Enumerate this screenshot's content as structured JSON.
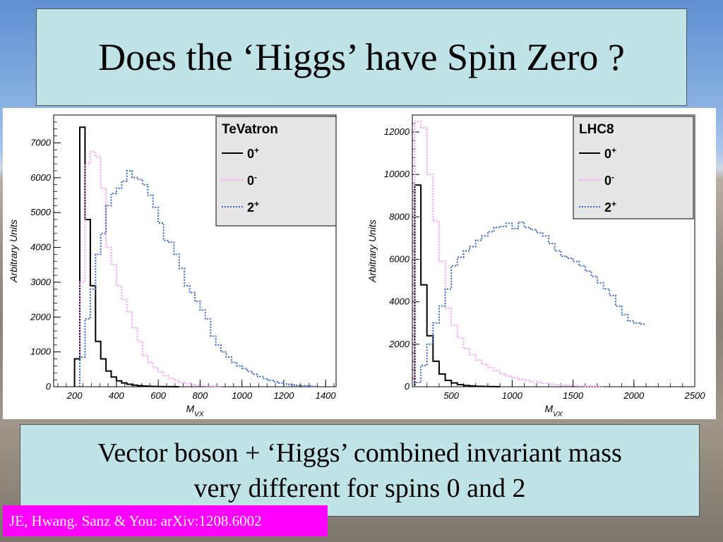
{
  "slide": {
    "title": "Does the ‘Higgs’ have Spin Zero ?",
    "caption_line1": "Vector boson + ‘Higgs’ combined invariant mass",
    "caption_line2": "very different for spins 0 and 2",
    "reference": "JE, Hwang. Sanz & You: arXiv:1208.6002"
  },
  "colors": {
    "series_0plus": "#000000",
    "series_0minus": "#ff99ff",
    "series_2plus": "#3366cc",
    "legend_bg": "#e6e6e6"
  },
  "chart_data": [
    {
      "type": "line",
      "legend_title": "TeVatron",
      "xlabel": "M_VX",
      "ylabel": "Arbitrary Units",
      "xlim": [
        100,
        1450
      ],
      "ylim": [
        0,
        7800
      ],
      "xticks": [
        200,
        400,
        600,
        800,
        1000,
        1200,
        1400
      ],
      "yticks": [
        0,
        1000,
        2000,
        3000,
        4000,
        5000,
        6000,
        7000
      ],
      "bin_width": 25,
      "series": [
        {
          "name": "0+",
          "sup": "+",
          "base": "0",
          "style": "solid",
          "bin_start": 200,
          "values": [
            800,
            7450,
            4800,
            2900,
            1300,
            800,
            450,
            280,
            170,
            110,
            70,
            45,
            30,
            20,
            12,
            8,
            5,
            3,
            2,
            1
          ]
        },
        {
          "name": "0-",
          "sup": "-",
          "base": "0",
          "style": "dotted",
          "bin_start": 225,
          "values": [
            3000,
            6400,
            6750,
            6600,
            5700,
            4000,
            3500,
            2900,
            2500,
            2150,
            1700,
            1300,
            900,
            700,
            550,
            420,
            320,
            240,
            180,
            130,
            90,
            60,
            40,
            25,
            15,
            10,
            5
          ]
        },
        {
          "name": "2+",
          "sup": "+",
          "base": "2",
          "style": "dotted",
          "bin_start": 225,
          "values": [
            850,
            1950,
            2800,
            3800,
            4400,
            5200,
            5550,
            5700,
            5900,
            6200,
            6000,
            5950,
            5800,
            5500,
            5150,
            4700,
            4200,
            4150,
            3800,
            3400,
            2900,
            2700,
            2450,
            2200,
            1950,
            1450,
            1200,
            1000,
            850,
            700,
            600,
            520,
            440,
            360,
            290,
            230,
            180,
            140,
            110,
            80,
            55,
            40,
            30,
            20,
            10
          ]
        }
      ]
    },
    {
      "type": "line",
      "legend_title": "LHC8",
      "xlabel": "M_VX",
      "ylabel": "Arbitrary Units",
      "xlim": [
        180,
        2500
      ],
      "ylim": [
        0,
        12800
      ],
      "xticks": [
        500,
        1000,
        1500,
        2000,
        2500
      ],
      "yticks": [
        0,
        2000,
        4000,
        6000,
        8000,
        10000,
        12000
      ],
      "bin_width": 50,
      "series": [
        {
          "name": "0+",
          "sup": "+",
          "base": "0",
          "style": "solid",
          "bin_start": 200,
          "values": [
            9500,
            4800,
            2400,
            1200,
            600,
            300,
            180,
            100,
            60,
            35,
            20,
            12,
            6,
            3
          ]
        },
        {
          "name": "0-",
          "sup": "-",
          "base": "0",
          "style": "dotted",
          "bin_start": 200,
          "values": [
            12500,
            12200,
            10000,
            7800,
            5900,
            3700,
            2900,
            2300,
            1800,
            1500,
            1250,
            1050,
            900,
            750,
            600,
            500,
            420,
            350,
            300,
            250,
            200,
            160,
            120,
            90,
            70,
            55,
            40,
            30,
            20,
            15,
            10
          ]
        },
        {
          "name": "2+",
          "sup": "+",
          "base": "2",
          "style": "dotted",
          "bin_start": 200,
          "values": [
            200,
            1000,
            2000,
            3000,
            3800,
            4600,
            5700,
            6100,
            6400,
            6600,
            6900,
            7100,
            7300,
            7500,
            7550,
            7700,
            7450,
            7750,
            7500,
            7400,
            7250,
            7100,
            6750,
            6400,
            6150,
            6050,
            5900,
            5700,
            5450,
            5200,
            4900,
            4600,
            4300,
            3800,
            3400,
            3100,
            3000,
            2950
          ]
        }
      ]
    }
  ]
}
